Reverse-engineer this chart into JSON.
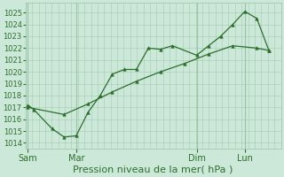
{
  "xlabel": "Pression niveau de la mer( hPa )",
  "ylim": [
    1013.5,
    1025.8
  ],
  "yticks": [
    1014,
    1015,
    1016,
    1017,
    1018,
    1019,
    1020,
    1021,
    1022,
    1023,
    1024,
    1025
  ],
  "bg_color": "#cce8d8",
  "grid_color": "#99c4aa",
  "line_color": "#2d6e2d",
  "marker_color": "#2d6e2d",
  "xtick_labels": [
    "Sam",
    "Mar",
    "Dim",
    "Lun"
  ],
  "xtick_positions": [
    0.0,
    2.0,
    7.0,
    9.0
  ],
  "xmin": -0.1,
  "xmax": 10.5,
  "series1_x": [
    0.0,
    0.25,
    1.0,
    1.5,
    2.0,
    2.5,
    3.0,
    3.5,
    4.0,
    4.5,
    5.0,
    5.5,
    6.0,
    7.0,
    7.5,
    8.0,
    8.5,
    9.0,
    9.5,
    10.0
  ],
  "series1_y": [
    1017.2,
    1016.8,
    1015.2,
    1014.5,
    1014.6,
    1016.6,
    1018.0,
    1019.8,
    1020.2,
    1020.2,
    1022.0,
    1021.9,
    1022.2,
    1021.4,
    1022.2,
    1023.0,
    1024.0,
    1025.1,
    1024.5,
    1021.8
  ],
  "series2_x": [
    0.0,
    1.5,
    2.5,
    3.5,
    4.5,
    5.5,
    6.5,
    7.5,
    8.5,
    9.5,
    10.0
  ],
  "series2_y": [
    1017.0,
    1016.4,
    1017.3,
    1018.3,
    1019.2,
    1020.0,
    1020.7,
    1021.5,
    1022.2,
    1022.0,
    1021.8
  ],
  "fontsize_xlabel": 8,
  "fontsize_ytick": 6,
  "fontsize_xtick": 7
}
